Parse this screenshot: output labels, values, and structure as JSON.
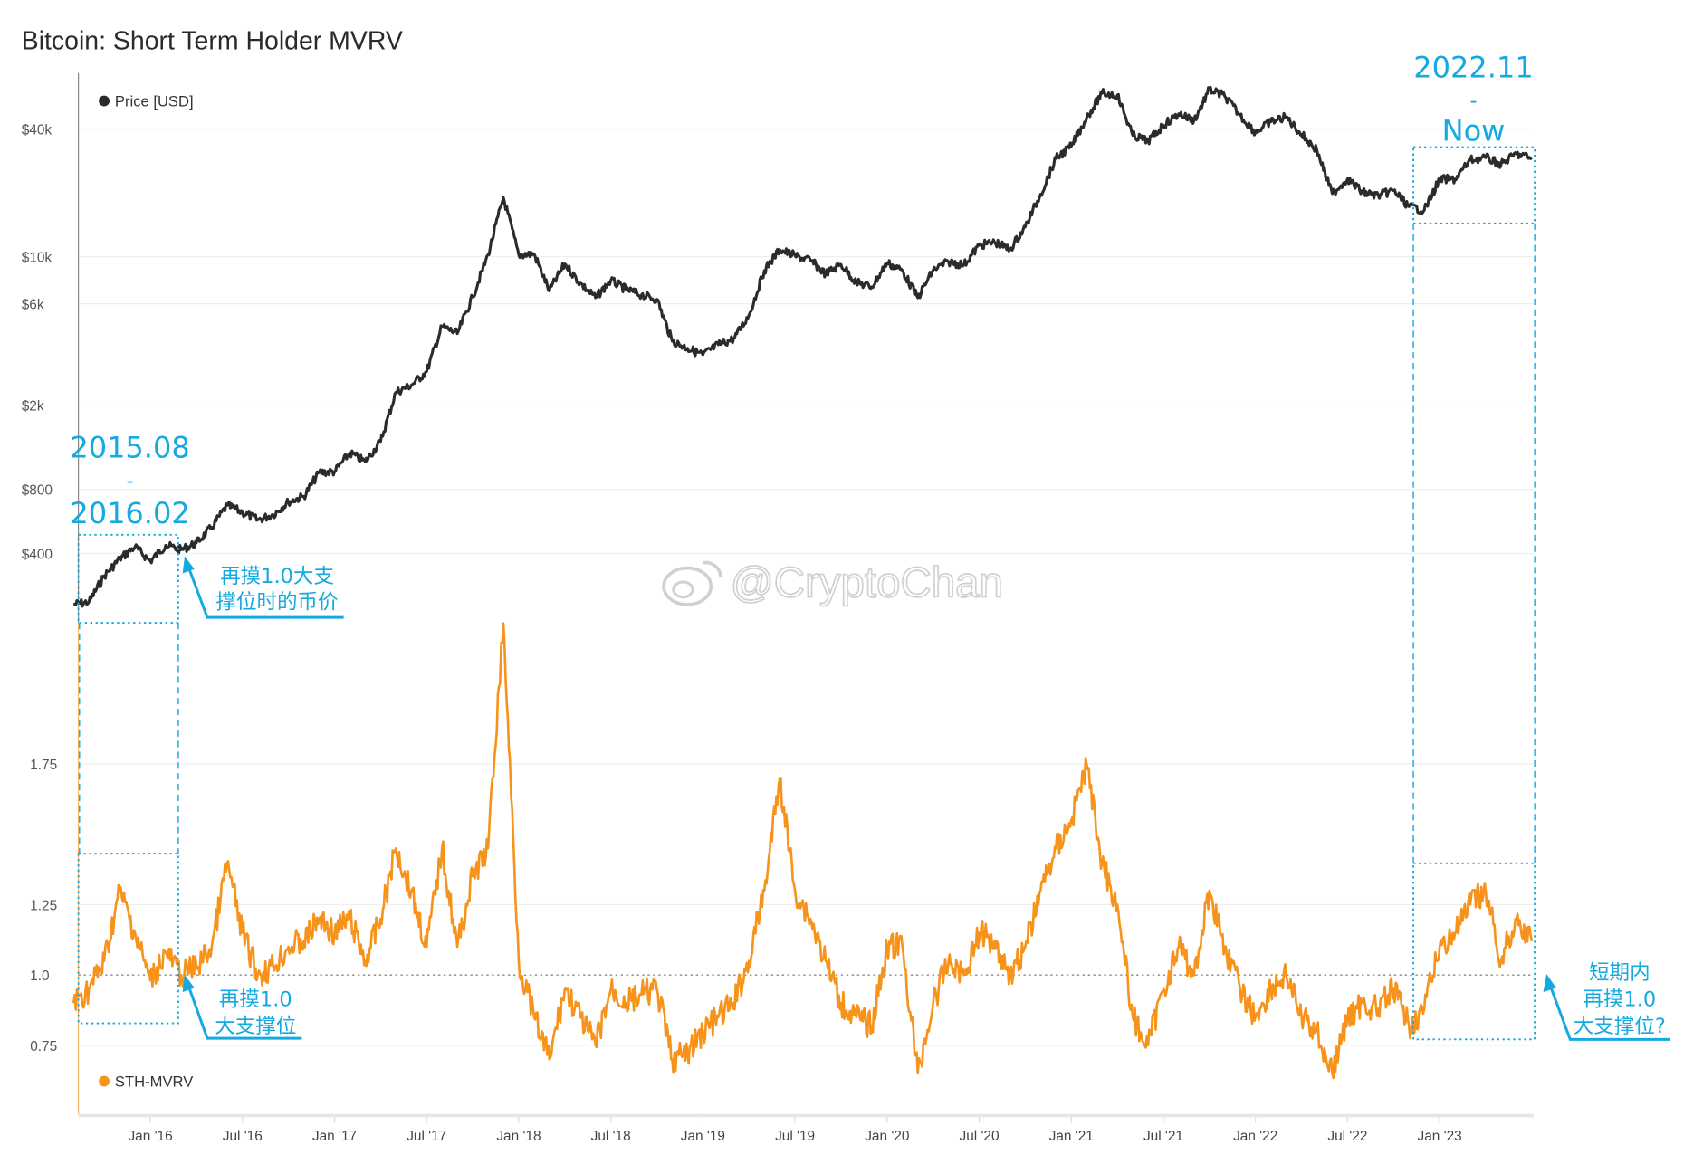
{
  "title": "Bitcoin: Short Term Holder MVRV",
  "watermark": "@CryptoChan",
  "chart_data": {
    "type": "line",
    "title": "Bitcoin: Short Term Holder MVRV",
    "x_ticks": [
      "Jan '16",
      "Jul '16",
      "Jan '17",
      "Jul '17",
      "Jan '18",
      "Jul '18",
      "Jan '19",
      "Jul '19",
      "Jan '20",
      "Jul '20",
      "Jan '21",
      "Jul '21",
      "Jan '22",
      "Jul '22",
      "Jan '23"
    ],
    "x_range": [
      "2015-08",
      "2023-07"
    ],
    "grid": true,
    "panels": [
      {
        "name": "price",
        "scale": "log",
        "y_ticks": [
          "$40k",
          "$10k",
          "$6k",
          "$2k",
          "$800",
          "$400"
        ],
        "y_tick_values": [
          40000,
          10000,
          6000,
          2000,
          800,
          400
        ],
        "legend": "Price [USD]",
        "legend_position": "top-left",
        "color": "#2b2b2b"
      },
      {
        "name": "mvrv",
        "scale": "linear",
        "y_ticks": [
          "1.75",
          "1.25",
          "1.0",
          "0.75"
        ],
        "y_tick_values": [
          1.75,
          1.25,
          1.0,
          0.75
        ],
        "reference_line": 1.0,
        "legend": "STH-MVRV",
        "legend_position": "bottom-left",
        "color": "#f7931a"
      }
    ],
    "dates": [
      "2015-08",
      "2015-09",
      "2015-10",
      "2015-11",
      "2015-12",
      "2016-01",
      "2016-02",
      "2016-03",
      "2016-04",
      "2016-05",
      "2016-06",
      "2016-07",
      "2016-08",
      "2016-09",
      "2016-10",
      "2016-11",
      "2016-12",
      "2017-01",
      "2017-02",
      "2017-03",
      "2017-04",
      "2017-05",
      "2017-06",
      "2017-07",
      "2017-08",
      "2017-09",
      "2017-10",
      "2017-11",
      "2017-12",
      "2018-01",
      "2018-02",
      "2018-03",
      "2018-04",
      "2018-05",
      "2018-06",
      "2018-07",
      "2018-08",
      "2018-09",
      "2018-10",
      "2018-11",
      "2018-12",
      "2019-01",
      "2019-02",
      "2019-03",
      "2019-04",
      "2019-05",
      "2019-06",
      "2019-07",
      "2019-08",
      "2019-09",
      "2019-10",
      "2019-11",
      "2019-12",
      "2020-01",
      "2020-02",
      "2020-03",
      "2020-04",
      "2020-05",
      "2020-06",
      "2020-07",
      "2020-08",
      "2020-09",
      "2020-10",
      "2020-11",
      "2020-12",
      "2021-01",
      "2021-02",
      "2021-03",
      "2021-04",
      "2021-05",
      "2021-06",
      "2021-07",
      "2021-08",
      "2021-09",
      "2021-10",
      "2021-11",
      "2021-12",
      "2022-01",
      "2022-02",
      "2022-03",
      "2022-04",
      "2022-05",
      "2022-06",
      "2022-07",
      "2022-08",
      "2022-09",
      "2022-10",
      "2022-11",
      "2022-12",
      "2023-01",
      "2023-02",
      "2023-03",
      "2023-04",
      "2023-05",
      "2023-06",
      "2023-07"
    ],
    "series": [
      {
        "name": "Price [USD]",
        "values": [
          230,
          236,
          314,
          377,
          430,
          368,
          437,
          416,
          448,
          531,
          673,
          624,
          575,
          609,
          700,
          742,
          963,
          970,
          1190,
          1080,
          1348,
          2300,
          2480,
          2875,
          4700,
          4340,
          6470,
          10200,
          19000,
          10200,
          10300,
          6900,
          9240,
          7500,
          6400,
          7730,
          7000,
          6600,
          6300,
          4000,
          3700,
          3450,
          3850,
          4100,
          5300,
          8600,
          10800,
          10100,
          9600,
          8300,
          9200,
          7550,
          7200,
          9350,
          8600,
          6400,
          8650,
          9450,
          9150,
          11300,
          11700,
          10800,
          13800,
          19700,
          29000,
          33100,
          45200,
          58800,
          57700,
          37300,
          35000,
          41500,
          47100,
          43800,
          61300,
          57000,
          46300,
          38500,
          43200,
          45500,
          37700,
          31800,
          19800,
          23300,
          20050,
          19400,
          20500,
          17200,
          16550,
          23100,
          23150,
          28500,
          29250,
          27200,
          30500,
          29200
        ]
      },
      {
        "name": "STH-MVRV",
        "values": [
          0.9,
          0.95,
          1.05,
          1.3,
          1.15,
          0.98,
          1.08,
          1.0,
          1.03,
          1.1,
          1.4,
          1.15,
          1.0,
          1.03,
          1.1,
          1.12,
          1.2,
          1.15,
          1.2,
          1.05,
          1.2,
          1.45,
          1.3,
          1.1,
          1.45,
          1.1,
          1.35,
          1.45,
          2.25,
          1.05,
          0.85,
          0.7,
          0.95,
          0.85,
          0.75,
          0.95,
          0.9,
          0.93,
          0.95,
          0.7,
          0.72,
          0.8,
          0.85,
          0.9,
          1.05,
          1.3,
          1.7,
          1.3,
          1.2,
          1.05,
          0.9,
          0.85,
          0.82,
          1.1,
          1.1,
          0.65,
          0.9,
          1.05,
          1.0,
          1.15,
          1.12,
          1.0,
          1.1,
          1.3,
          1.45,
          1.55,
          1.75,
          1.4,
          1.25,
          0.85,
          0.75,
          0.95,
          1.1,
          1.0,
          1.3,
          1.1,
          0.95,
          0.85,
          0.95,
          1.0,
          0.85,
          0.8,
          0.65,
          0.85,
          0.9,
          0.88,
          0.95,
          0.82,
          0.88,
          1.1,
          1.15,
          1.25,
          1.3,
          1.05,
          1.2,
          1.12
        ]
      }
    ]
  },
  "annotations": {
    "period1": {
      "start": "2015.08",
      "dash": "-",
      "end": "2016.02"
    },
    "period2": {
      "start": "2022.11",
      "dash": "-",
      "end": "Now"
    },
    "note_price": [
      "再摸1.0大支",
      "撑位时的币价"
    ],
    "note_support": [
      "再摸1.0",
      "大支撑位"
    ],
    "note_now": [
      "短期内",
      "再摸1.0",
      "大支撑位?"
    ],
    "color": "#14a9e0"
  }
}
